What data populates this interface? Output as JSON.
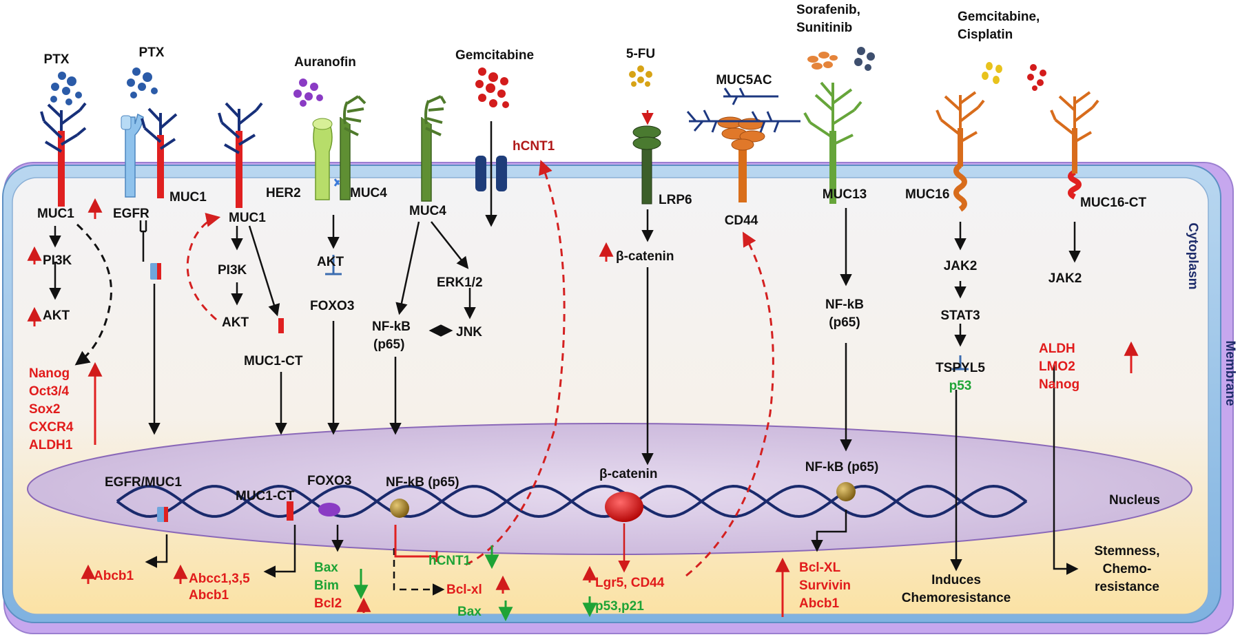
{
  "colors": {
    "black": "#111111",
    "red": "#e11b1b",
    "green": "#1ea336",
    "navy": "#1f2d6b",
    "membrane": "#9bc3e6",
    "outer_membrane": "#c6a7ee",
    "nucleus": "#d2bfe0",
    "dna": "#1a2a6c",
    "muc1_glyco": "#17307a",
    "muc16": "#d86c1c",
    "muc4": "#4f7a2b",
    "muc13": "#66a53a",
    "egfr": "#7fb8e8",
    "drug_pt_blue": "#2b5ba8",
    "drug_purple": "#8a3bc4",
    "drug_red": "#d31c1c",
    "drug_gold": "#d7a316",
    "drug_orange": "#e5843a",
    "drug_slate": "#3e4f6e"
  },
  "icons": [
    "ptx-drug-dots",
    "auranofin-drug-dots",
    "gemcitabine-drug-dots",
    "fu-drug-dots",
    "sorafenib-drug-dots",
    "gem-cisplatin-drug-dots",
    "mucin-glycan-branches",
    "hcnt1-transporter",
    "dna-double-helix",
    "transcription-factor-bead"
  ],
  "labels": {
    "ptx1": "PTX",
    "ptx2": "PTX",
    "auranofin": "Auranofin",
    "gemcitabine": "Gemcitabine",
    "fu": "5-FU",
    "muc5ac": "MUC5AC",
    "sorafenib1": "Sorafenib,",
    "sorafenib2": "Sunitinib",
    "gemcis1": "Gemcitabine,",
    "gemcis2": "Cisplatin",
    "cytoplasm": "Cytoplasm",
    "membrane": "Membrane",
    "nucleus": "Nucleus",
    "p1_muc1": "MUC1",
    "p1_pi3k": "PI3K",
    "p1_akt": "AKT",
    "p1_targets": [
      "Nanog",
      "Oct3/4",
      "Sox2",
      "CXCR4",
      "ALDH1"
    ],
    "p2_muc1": "MUC1",
    "p2_egfr": "EGFR",
    "p2_nuc": "EGFR/MUC1",
    "p2_out": "Abcb1",
    "p3_muc1": "MUC1",
    "p3_pi3k": "PI3K",
    "p3_akt": "AKT",
    "p3_ct": "MUC1-CT",
    "p3_nuc": "MUC1-CT",
    "p3_out1": "Abcc1,3,5",
    "p3_out2": "Abcb1",
    "p4_her2": "HER2",
    "p4_muc4": "MUC4",
    "p4_akt": "AKT",
    "p4_foxo3": "FOXO3",
    "p4_nuc": "FOXO3",
    "p4_out": [
      "Bax",
      "Bim",
      "Bcl2"
    ],
    "p5_muc4": "MUC4",
    "p5_erk": "ERK1/2",
    "p5_nfkb1": "NF-kB",
    "p5_nfkb2": "(p65)",
    "p5_jnk": "JNK",
    "p5_nuc": "NF-kB (p65)",
    "p5_hcnt1": "hCNT1",
    "p5_bclxl": "Bcl-xl",
    "p5_bax": "Bax",
    "hcnt1_top": "hCNT1",
    "p6_lrp6": "LRP6",
    "p6_bcat": "β-catenin",
    "p6_nuc": "β-catenin",
    "p6_out1": "Lgr5, CD44",
    "p6_out2": "p53,p21",
    "p7_cd44": "CD44",
    "p8_muc13": "MUC13",
    "p8_nfkb1": "NF-kB",
    "p8_nfkb2": "(p65)",
    "p8_nuc": "NF-kB (p65)",
    "p8_out": [
      "Bcl-XL",
      "Survivin",
      "Abcb1"
    ],
    "p9_muc16": "MUC16",
    "p9_jak2": "JAK2",
    "p9_stat3": "STAT3",
    "p9_tspyl5": "TSPYL5",
    "p9_p53": "p53",
    "p9_out1": "Induces",
    "p9_out2": "Chemoresistance",
    "p10_muc16ct": "MUC16-CT",
    "p10_jak2": "JAK2",
    "p10_targets": [
      "ALDH",
      "LMO2",
      "Nanog"
    ],
    "p10_out": [
      "Stemness,",
      "Chemo-",
      "resistance"
    ]
  }
}
